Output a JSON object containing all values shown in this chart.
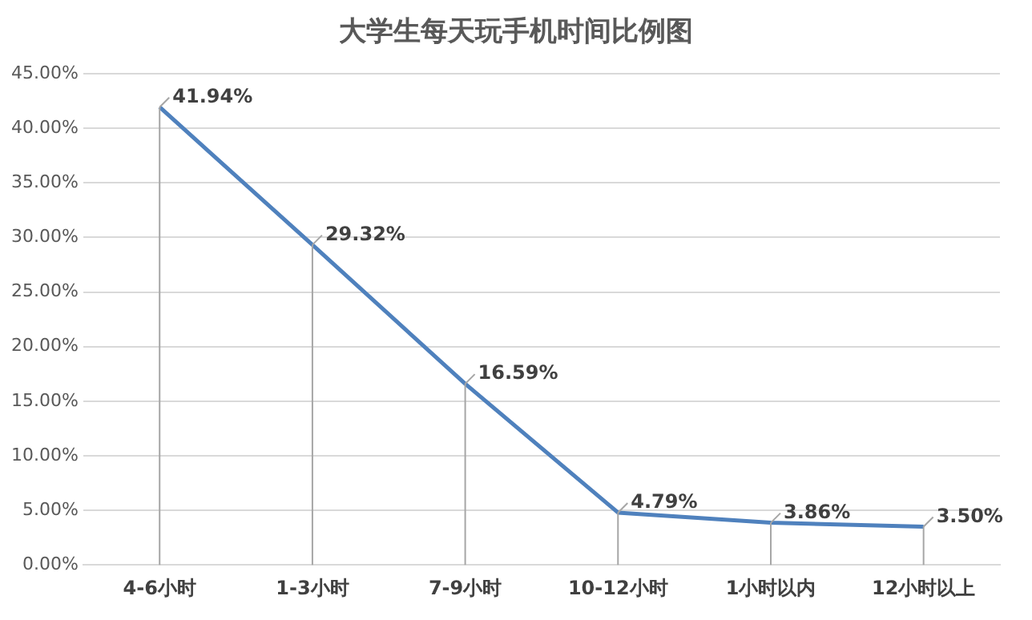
{
  "chart_data": {
    "type": "line",
    "title": "大学生每天玩手机时间比例图",
    "categories": [
      "4-6小时",
      "1-3小时",
      "7-9小时",
      "10-12小时",
      "1小时以内",
      "12小时以上"
    ],
    "series": [
      {
        "color": "#4f81bd",
        "values": [
          41.94,
          29.32,
          16.59,
          4.79,
          3.86,
          3.5
        ],
        "value_labels": [
          "41.94%",
          "29.32%",
          "16.59%",
          "4.79%",
          "3.86%",
          "3.50%"
        ],
        "errors": [
          [
            0,
            41.94
          ],
          [
            0,
            29.32
          ],
          [
            0,
            16.59
          ],
          [
            0,
            4.79
          ],
          [
            0,
            3.86
          ],
          [
            0,
            3.5
          ]
        ]
      }
    ],
    "ylim": [
      0,
      45
    ],
    "yticks": [
      {
        "value": 0,
        "label": "0.00%"
      },
      {
        "value": 5,
        "label": "5.00%"
      },
      {
        "value": 10,
        "label": "10.00%"
      },
      {
        "value": 15,
        "label": "15.00%"
      },
      {
        "value": 20,
        "label": "20.00%"
      },
      {
        "value": 25,
        "label": "25.00%"
      },
      {
        "value": 30,
        "label": "30.00%"
      },
      {
        "value": 35,
        "label": "35.00%"
      },
      {
        "value": 40,
        "label": "40.00%"
      },
      {
        "value": 45,
        "label": "45.00%"
      }
    ],
    "grid": "y",
    "legend": false,
    "marker": "none",
    "line_style": "solid"
  }
}
